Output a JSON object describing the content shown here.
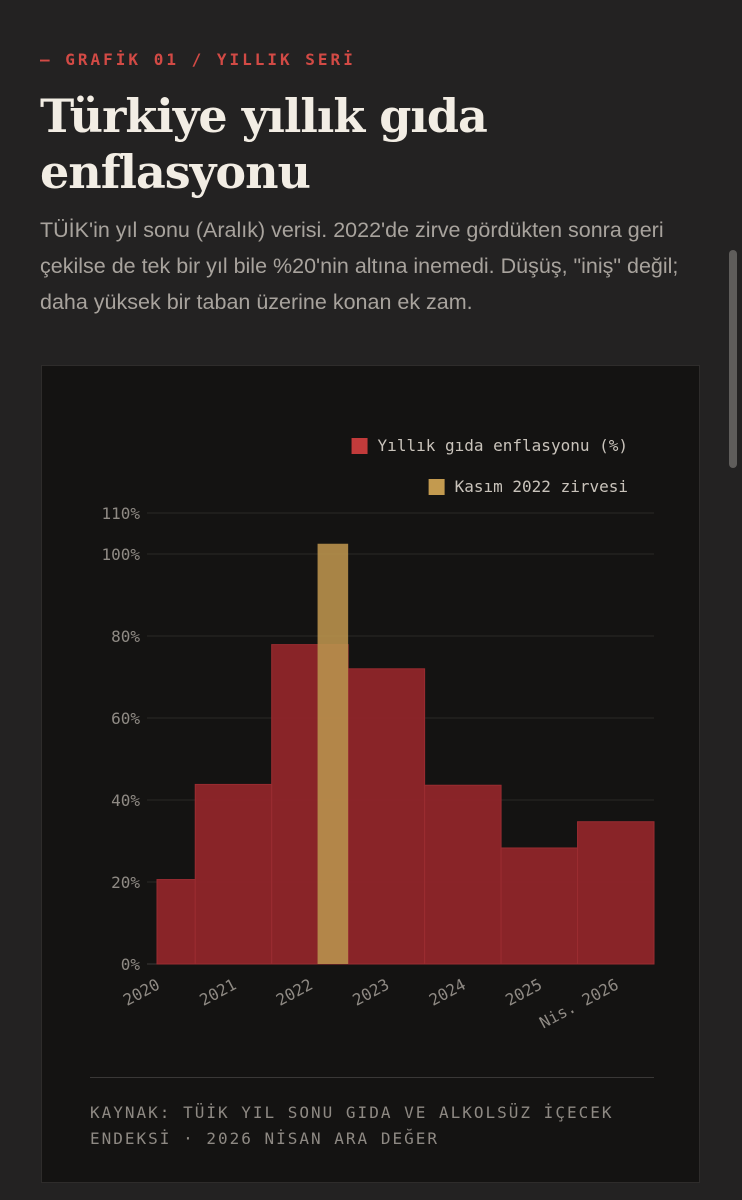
{
  "header": {
    "eyebrow": "— GRAFİK 01 / YILLIK SERİ",
    "title": "Türkiye yıllık gıda enflasyonu",
    "subtitle": "TÜİK'in yıl sonu (Aralık) verisi. 2022'de zirve gördükten sonra geri çekilse de tek bir yıl bile %20'nin altına inemedi. Düşüş, \"iniş\" değil; daha yüksek bir taban üzerine konan ek zam."
  },
  "colors": {
    "background": "#232222",
    "card": "#141312",
    "accent_red": "#8f252a",
    "accent_gold": "#b8914c",
    "eyebrow_red": "#d24a45"
  },
  "chart_data": {
    "type": "bar",
    "ylim": [
      0,
      110
    ],
    "yticks": [
      "0%",
      "20%",
      "40%",
      "60%",
      "80%",
      "100%",
      "110%"
    ],
    "ytick_values": [
      0,
      20,
      40,
      60,
      80,
      100,
      110
    ],
    "grid": true,
    "legend_position": "top-right",
    "categories": [
      "2020",
      "2021",
      "2022",
      "2023",
      "2024",
      "2025",
      "Nis. 2026"
    ],
    "series": [
      {
        "name": "Yıllık gıda enflasyonu (%)",
        "color": "#8f252a",
        "bars": [
          {
            "from": 2020.0,
            "to": 2020.5,
            "value": 20.6
          },
          {
            "from": 2020.5,
            "to": 2021.5,
            "value": 43.8
          },
          {
            "from": 2021.5,
            "to": 2022.5,
            "value": 77.9
          },
          {
            "from": 2022.5,
            "to": 2023.5,
            "value": 72.0
          },
          {
            "from": 2023.5,
            "to": 2024.5,
            "value": 43.6
          },
          {
            "from": 2024.5,
            "to": 2025.5,
            "value": 28.3
          },
          {
            "from": 2025.5,
            "to": 2026.5,
            "value": 34.7
          }
        ]
      },
      {
        "name": "Kasım 2022 zirvesi",
        "color": "#b8914c",
        "bars": [
          {
            "from": 2022.1,
            "to": 2022.5,
            "value": 102.5
          }
        ]
      }
    ],
    "x_tick_positions": [
      2020.0,
      2021.0,
      2022.0,
      2023.0,
      2024.0,
      2025.0,
      2026.0
    ],
    "xlim": [
      2020.0,
      2026.5
    ]
  },
  "source": {
    "line1": "KAYNAK: TÜİK YIL SONU GIDA VE ALKOLSÜZ İÇECEK",
    "line2": "ENDEKSİ · 2026 NİSAN ARA DEĞER"
  }
}
